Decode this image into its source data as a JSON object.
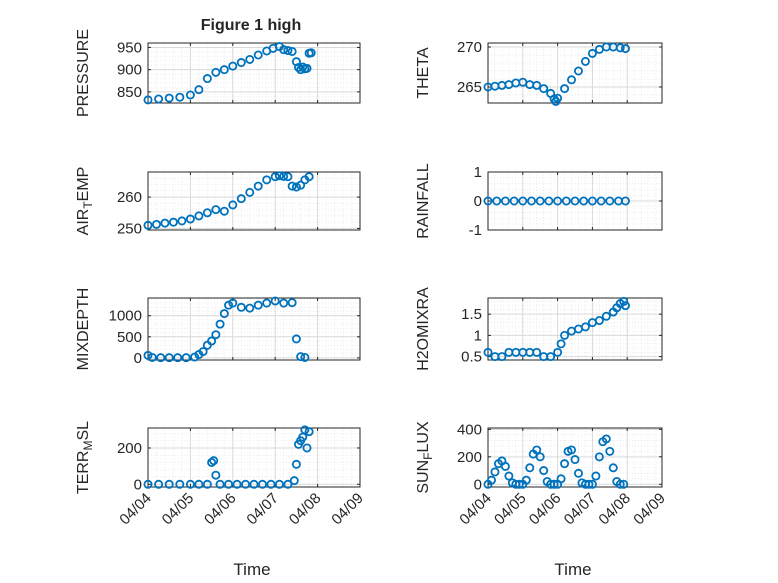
{
  "figure": {
    "title": "Figure 1 high"
  },
  "colors": {
    "marker": "#0072bd",
    "axis": "#262626",
    "grid": "#d9d9d9",
    "background": "#ffffff"
  },
  "chart_data": [
    {
      "id": "pressure",
      "type": "scatter",
      "ylabel": "PRESSURE",
      "xlabel": "",
      "ylim": [
        825,
        960
      ],
      "yticks": [
        850,
        900,
        950
      ],
      "ytick_labels": [
        "850",
        "900",
        "950"
      ],
      "xlim": [
        0,
        5
      ],
      "xtick_labels": [
        "04/04",
        "04/05",
        "04/06",
        "04/07",
        "04/08",
        "04/09"
      ],
      "show_xtick_labels": false,
      "title": "Figure 1 high",
      "series": [
        {
          "name": "PRESSURE",
          "x": [
            0,
            0.25,
            0.5,
            0.75,
            1,
            1.2,
            1.4,
            1.6,
            1.8,
            2,
            2.2,
            2.4,
            2.6,
            2.8,
            2.95,
            3.1,
            3.2,
            3.3,
            3.4,
            3.5,
            3.55,
            3.6,
            3.65,
            3.7,
            3.75,
            3.8,
            3.85
          ],
          "y": [
            832,
            834,
            836,
            838,
            843,
            855,
            880,
            894,
            900,
            908,
            916,
            923,
            933,
            942,
            948,
            952,
            945,
            943,
            941,
            918,
            905,
            900,
            906,
            902,
            903,
            937,
            938
          ]
        }
      ]
    },
    {
      "id": "theta",
      "type": "scatter",
      "ylabel": "THETA",
      "xlabel": "",
      "ylim": [
        263,
        270.5
      ],
      "yticks": [
        265,
        270
      ],
      "ytick_labels": [
        "265",
        "270"
      ],
      "xlim": [
        0,
        5
      ],
      "xtick_labels": [
        "04/04",
        "04/05",
        "04/06",
        "04/07",
        "04/08",
        "04/09"
      ],
      "show_xtick_labels": false,
      "series": [
        {
          "name": "THETA",
          "x": [
            0,
            0.2,
            0.4,
            0.6,
            0.8,
            1,
            1.2,
            1.4,
            1.6,
            1.8,
            1.9,
            1.95,
            2,
            2.2,
            2.4,
            2.6,
            2.8,
            3,
            3.2,
            3.4,
            3.6,
            3.8,
            3.95
          ],
          "y": [
            265,
            265.1,
            265.2,
            265.3,
            265.5,
            265.6,
            265.3,
            265.2,
            264.8,
            264.2,
            263.5,
            263.2,
            263.6,
            264.8,
            265.9,
            267.0,
            268.2,
            269.2,
            269.7,
            270.0,
            270.0,
            269.9,
            269.8
          ]
        }
      ]
    },
    {
      "id": "air_temp",
      "type": "scatter",
      "ylabel": "AIR_TEMP",
      "xlabel": "",
      "ylim": [
        249.5,
        268
      ],
      "yticks": [
        250,
        260
      ],
      "ytick_labels": [
        "250",
        "260"
      ],
      "xlim": [
        0,
        5
      ],
      "xtick_labels": [
        "04/04",
        "04/05",
        "04/06",
        "04/07",
        "04/08",
        "04/09"
      ],
      "show_xtick_labels": false,
      "series": [
        {
          "name": "AIR_TEMP",
          "x": [
            0,
            0.2,
            0.4,
            0.6,
            0.8,
            1,
            1.2,
            1.4,
            1.6,
            1.8,
            2,
            2.2,
            2.4,
            2.6,
            2.8,
            3,
            3.1,
            3.2,
            3.3,
            3.4,
            3.5,
            3.6,
            3.7,
            3.8
          ],
          "y": [
            251,
            251.3,
            251.7,
            252,
            252.4,
            253,
            254,
            255,
            256,
            255.5,
            257.5,
            259.5,
            261.5,
            263.5,
            265.5,
            266.5,
            266.8,
            266.6,
            266.5,
            263.5,
            263.2,
            263.8,
            265.5,
            266.5
          ]
        }
      ]
    },
    {
      "id": "rainfall",
      "type": "scatter",
      "ylabel": "RAINFALL",
      "xlabel": "",
      "ylim": [
        -1,
        1
      ],
      "yticks": [
        -1,
        0,
        1
      ],
      "ytick_labels": [
        "-1",
        "0",
        "1"
      ],
      "xlim": [
        0,
        5
      ],
      "xtick_labels": [
        "04/04",
        "04/05",
        "04/06",
        "04/07",
        "04/08",
        "04/09"
      ],
      "show_xtick_labels": false,
      "series": [
        {
          "name": "RAINFALL",
          "x": [
            0,
            0.25,
            0.5,
            0.75,
            1,
            1.25,
            1.5,
            1.75,
            2,
            2.25,
            2.5,
            2.75,
            3,
            3.25,
            3.5,
            3.75,
            3.95
          ],
          "y": [
            0,
            0,
            0,
            0,
            0,
            0,
            0,
            0,
            0,
            0,
            0,
            0,
            0,
            0,
            0,
            0,
            0
          ]
        }
      ]
    },
    {
      "id": "mixdepth",
      "type": "scatter",
      "ylabel": "MIXDEPTH",
      "xlabel": "",
      "ylim": [
        -50,
        1420
      ],
      "yticks": [
        0,
        500,
        1000
      ],
      "ytick_labels": [
        "0",
        "500",
        "1000"
      ],
      "xlim": [
        0,
        5
      ],
      "xtick_labels": [
        "04/04",
        "04/05",
        "04/06",
        "04/07",
        "04/08",
        "04/09"
      ],
      "show_xtick_labels": false,
      "series": [
        {
          "name": "MIXDEPTH",
          "x": [
            0,
            0.1,
            0.3,
            0.5,
            0.7,
            0.9,
            1.1,
            1.2,
            1.3,
            1.4,
            1.5,
            1.6,
            1.7,
            1.8,
            1.9,
            2,
            2.2,
            2.4,
            2.6,
            2.8,
            3,
            3.2,
            3.4,
            3.5,
            3.6,
            3.7
          ],
          "y": [
            60,
            10,
            5,
            5,
            5,
            5,
            20,
            80,
            150,
            300,
            400,
            550,
            800,
            1050,
            1250,
            1300,
            1200,
            1180,
            1250,
            1300,
            1350,
            1300,
            1310,
            450,
            30,
            10
          ]
        }
      ]
    },
    {
      "id": "h2omixra",
      "type": "scatter",
      "ylabel": "H2OMIXRA",
      "xlabel": "",
      "ylim": [
        0.42,
        1.88
      ],
      "yticks": [
        0.5,
        1,
        1.5
      ],
      "ytick_labels": [
        "0.5",
        "1",
        "1.5"
      ],
      "xlim": [
        0,
        5
      ],
      "xtick_labels": [
        "04/04",
        "04/05",
        "04/06",
        "04/07",
        "04/08",
        "04/09"
      ],
      "show_xtick_labels": false,
      "series": [
        {
          "name": "H2OMIXRA",
          "x": [
            0,
            0.2,
            0.4,
            0.6,
            0.8,
            1,
            1.2,
            1.4,
            1.6,
            1.8,
            2,
            2.1,
            2.2,
            2.4,
            2.6,
            2.8,
            3,
            3.2,
            3.4,
            3.6,
            3.7,
            3.8,
            3.9,
            3.95
          ],
          "y": [
            0.6,
            0.5,
            0.5,
            0.6,
            0.6,
            0.6,
            0.6,
            0.6,
            0.5,
            0.5,
            0.6,
            0.8,
            1.0,
            1.1,
            1.15,
            1.2,
            1.3,
            1.35,
            1.45,
            1.55,
            1.65,
            1.75,
            1.8,
            1.7
          ]
        }
      ]
    },
    {
      "id": "terr_msl",
      "type": "scatter",
      "ylabel": "TERR_MSL",
      "xlabel": "Time",
      "ylim": [
        -15,
        310
      ],
      "yticks": [
        0,
        200
      ],
      "ytick_labels": [
        "0",
        "200"
      ],
      "xlim": [
        0,
        5
      ],
      "xtick_labels": [
        "04/04",
        "04/05",
        "04/06",
        "04/07",
        "04/08",
        "04/09"
      ],
      "show_xtick_labels": true,
      "series": [
        {
          "name": "TERR_MSL",
          "x": [
            0,
            0.25,
            0.5,
            0.75,
            1,
            1.2,
            1.4,
            1.5,
            1.55,
            1.6,
            1.7,
            1.9,
            2.1,
            2.3,
            2.5,
            2.7,
            2.9,
            3.1,
            3.3,
            3.45,
            3.5,
            3.55,
            3.6,
            3.65,
            3.7,
            3.75,
            3.8
          ],
          "y": [
            0,
            0,
            0,
            0,
            0,
            0,
            0,
            120,
            130,
            50,
            0,
            0,
            0,
            0,
            0,
            0,
            0,
            0,
            0,
            20,
            110,
            220,
            240,
            260,
            300,
            200,
            290
          ]
        }
      ]
    },
    {
      "id": "sun_flux",
      "type": "scatter",
      "ylabel": "SUN_FLUX",
      "xlabel": "Time",
      "ylim": [
        -20,
        410
      ],
      "yticks": [
        0,
        200,
        400
      ],
      "ytick_labels": [
        "0",
        "200",
        "400"
      ],
      "xlim": [
        0,
        5
      ],
      "xtick_labels": [
        "04/04",
        "04/05",
        "04/06",
        "04/07",
        "04/08",
        "04/09"
      ],
      "show_xtick_labels": true,
      "series": [
        {
          "name": "SUN_FLUX",
          "x": [
            0,
            0.1,
            0.2,
            0.3,
            0.4,
            0.5,
            0.6,
            0.7,
            0.8,
            0.9,
            1,
            1.1,
            1.2,
            1.3,
            1.4,
            1.5,
            1.6,
            1.7,
            1.8,
            1.9,
            2,
            2.1,
            2.2,
            2.3,
            2.4,
            2.5,
            2.6,
            2.7,
            2.8,
            2.9,
            3,
            3.1,
            3.2,
            3.3,
            3.4,
            3.5,
            3.6,
            3.7,
            3.8,
            3.9
          ],
          "y": [
            0,
            30,
            90,
            150,
            170,
            130,
            60,
            10,
            0,
            0,
            0,
            30,
            120,
            220,
            250,
            200,
            100,
            20,
            0,
            0,
            0,
            40,
            150,
            240,
            250,
            180,
            80,
            10,
            0,
            0,
            0,
            60,
            200,
            310,
            330,
            240,
            120,
            20,
            0,
            0
          ]
        }
      ]
    }
  ]
}
